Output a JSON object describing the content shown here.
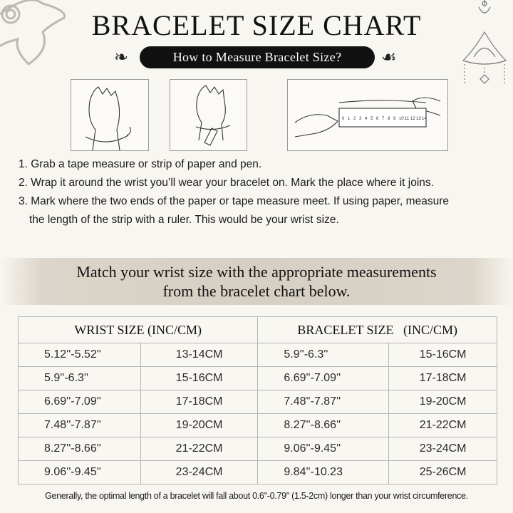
{
  "header": {
    "title": "BRACELET SIZE CHART",
    "subtitle": "How to Measure Bracelet Size?"
  },
  "illustrations": [
    {
      "name": "hand-with-tape-wrapped"
    },
    {
      "name": "hand-with-paper-strip"
    },
    {
      "name": "hands-with-ruler",
      "ruler_numbers": [
        "0",
        "1",
        "2",
        "3",
        "4",
        "5",
        "6",
        "7",
        "8",
        "9",
        "10",
        "11",
        "12",
        "13",
        "14"
      ]
    }
  ],
  "steps": [
    "1. Grab a tape measure or strip of paper and pen.",
    "2. Wrap it around the wrist you’ll wear your bracelet on. Mark the place where it joins.",
    "3. Mark where the two ends of the paper or tape measure meet. If using paper, measure",
    "the length of the strip with a ruler. This would be your wrist size."
  ],
  "band": {
    "line1": "Match your wrist size with the appropriate measurements",
    "line2": "from the bracelet chart below."
  },
  "table": {
    "headers": [
      "WRIST SIZE (INC/CM)",
      "BRACELET SIZE   (INC/CM)"
    ],
    "rows": [
      [
        "5.12''-5.52''",
        "13-14CM",
        "5.9''-6.3''",
        "15-16CM"
      ],
      [
        "5.9''-6.3''",
        "15-16CM",
        "6.69''-7.09''",
        "17-18CM"
      ],
      [
        "6.69''-7.09''",
        "17-18CM",
        "7.48''-7.87''",
        "19-20CM"
      ],
      [
        "7.48''-7.87''",
        "19-20CM",
        "8.27''-8.66''",
        "21-22CM"
      ],
      [
        "8.27''-8.66''",
        "21-22CM",
        "9.06''-9.45''",
        "23-24CM"
      ],
      [
        "9.06''-9.45''",
        "23-24CM",
        "9.84''-10.23",
        "25-26CM"
      ]
    ]
  },
  "footer": "Generally, the optimal length of a bracelet will fall about 0.6''-0.79'' (1.5-2cm) longer than your wrist circumference.",
  "colors": {
    "background": "#f8f6f1",
    "pill": "#111111",
    "band": "#d6cfc4"
  }
}
